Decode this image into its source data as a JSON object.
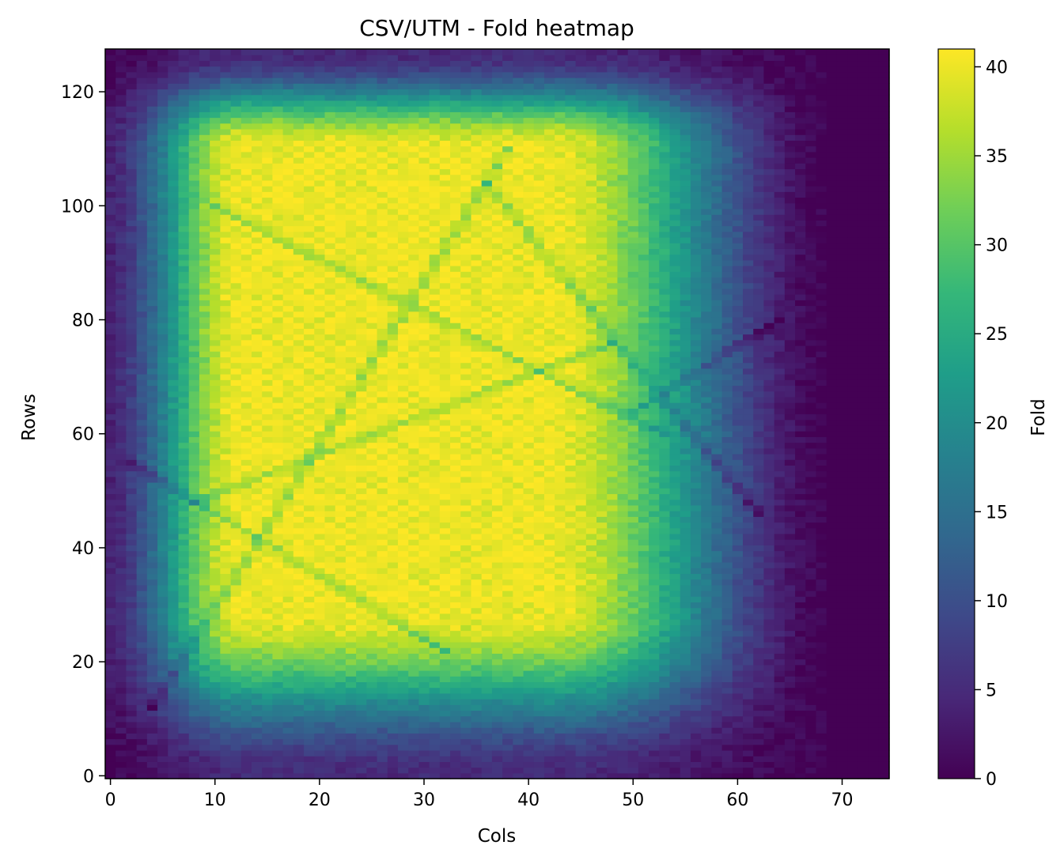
{
  "chart_data": {
    "type": "heatmap",
    "title": "CSV/UTM - Fold heatmap",
    "xlabel": "Cols",
    "ylabel": "Rows",
    "colorbar_label": "Fold",
    "colormap": "viridis",
    "n_cols": 75,
    "n_rows": 128,
    "xlim": [
      -0.5,
      74.5
    ],
    "ylim": [
      -0.5,
      127.5
    ],
    "vmin": 0,
    "vmax": 41,
    "x_ticks": [
      0,
      10,
      20,
      30,
      40,
      50,
      60,
      70
    ],
    "y_ticks": [
      0,
      20,
      40,
      60,
      80,
      100,
      120
    ],
    "colorbar_ticks": [
      0,
      5,
      10,
      15,
      20,
      25,
      30,
      35,
      40
    ],
    "profile": {
      "col_plateau": [
        13,
        42
      ],
      "col_zero_from": 69,
      "row_plateau": [
        30,
        110
      ],
      "peak_value": 40
    },
    "diagonals": [
      {
        "from": [
          4,
          12
        ],
        "to": [
          38,
          110
        ]
      },
      {
        "from": [
          10,
          100
        ],
        "to": [
          53,
          60
        ]
      },
      {
        "from": [
          2,
          55
        ],
        "to": [
          32,
          22
        ]
      },
      {
        "from": [
          50,
          64
        ],
        "to": [
          64,
          80
        ]
      },
      {
        "from": [
          36,
          104
        ],
        "to": [
          62,
          46
        ]
      },
      {
        "from": [
          8,
          48
        ],
        "to": [
          48,
          76
        ]
      }
    ],
    "colors": {
      "viridis": [
        "#440154",
        "#482878",
        "#3e4989",
        "#31688e",
        "#26828e",
        "#1f9e89",
        "#35b779",
        "#6ece58",
        "#b5de2b",
        "#fde725"
      ]
    }
  }
}
